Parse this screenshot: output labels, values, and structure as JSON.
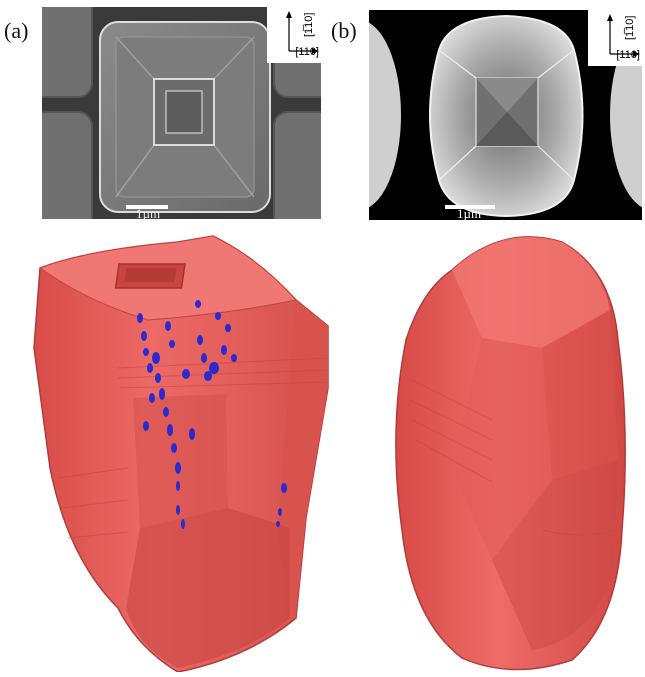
{
  "figure": {
    "panel_a": {
      "label": "(a)",
      "axis_x": "[110]",
      "axis_y": "[1̅10]",
      "scale_bar": "1µm"
    },
    "panel_b": {
      "label": "(b)",
      "axis_x": "[110]",
      "axis_y": "[1̅10]",
      "scale_bar": "1µm"
    }
  },
  "colors": {
    "crystal_red": "#e8615e",
    "crystal_shadow": "#c84440",
    "void_blue": "#2a2ad0"
  }
}
